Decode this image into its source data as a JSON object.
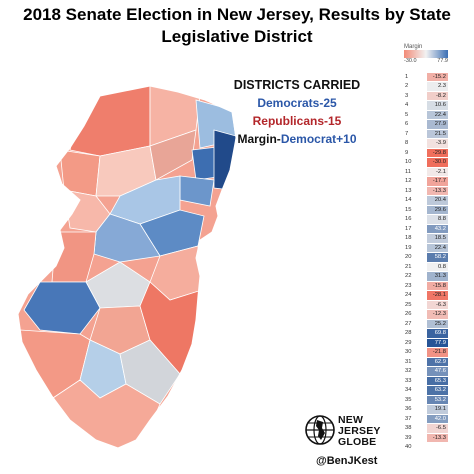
{
  "title": {
    "line1": "2018 Senate Election in New Jersey, Results by State",
    "line2": "Legislative District"
  },
  "summary": {
    "heading": "DISTRICTS CARRIED",
    "democrats": "Democrats-25",
    "republicans": "Republicans-15",
    "margin_label": "Margin-",
    "margin_value": "Democrat+10"
  },
  "legend": {
    "title": "Margin",
    "min_label": "-30.0",
    "max_label": "77.9",
    "colors": {
      "rep": "#f28b78",
      "neutral": "#f2f2f2",
      "dem": "#3c6fb4"
    }
  },
  "districts": [
    {
      "d": "1",
      "m": "-15.2"
    },
    {
      "d": "2",
      "m": "2.3"
    },
    {
      "d": "3",
      "m": "-8.2"
    },
    {
      "d": "4",
      "m": "10.6"
    },
    {
      "d": "5",
      "m": "22.4"
    },
    {
      "d": "6",
      "m": "27.9"
    },
    {
      "d": "7",
      "m": "21.5"
    },
    {
      "d": "8",
      "m": "-3.9"
    },
    {
      "d": "9",
      "m": "-29.8"
    },
    {
      "d": "10",
      "m": "-30.0"
    },
    {
      "d": "11",
      "m": "-2.1"
    },
    {
      "d": "12",
      "m": "-17.7"
    },
    {
      "d": "13",
      "m": "-13.3"
    },
    {
      "d": "14",
      "m": "20.4"
    },
    {
      "d": "15",
      "m": "29.6"
    },
    {
      "d": "16",
      "m": "8.8"
    },
    {
      "d": "17",
      "m": "43.2"
    },
    {
      "d": "18",
      "m": "18.5"
    },
    {
      "d": "19",
      "m": "22.4"
    },
    {
      "d": "20",
      "m": "58.2"
    },
    {
      "d": "21",
      "m": "0.8"
    },
    {
      "d": "22",
      "m": "31.3"
    },
    {
      "d": "23",
      "m": "-15.8"
    },
    {
      "d": "24",
      "m": "-28.1"
    },
    {
      "d": "25",
      "m": "-6.3"
    },
    {
      "d": "26",
      "m": "-12.3"
    },
    {
      "d": "27",
      "m": "25.2"
    },
    {
      "d": "28",
      "m": "69.8"
    },
    {
      "d": "29",
      "m": "77.9"
    },
    {
      "d": "30",
      "m": "-21.8"
    },
    {
      "d": "31",
      "m": "62.9"
    },
    {
      "d": "32",
      "m": "47.6"
    },
    {
      "d": "33",
      "m": "65.3"
    },
    {
      "d": "34",
      "m": "63.2"
    },
    {
      "d": "35",
      "m": "53.2"
    },
    {
      "d": "36",
      "m": "19.1"
    },
    {
      "d": "37",
      "m": "42.0"
    },
    {
      "d": "38",
      "m": "-6.5"
    },
    {
      "d": "39",
      "m": "-13.3"
    },
    {
      "d": "40",
      "m": ""
    }
  ],
  "logo": {
    "line1": "NEW",
    "line2": "JERSEY",
    "line3": "GLOBE",
    "icon": "globe-icon"
  },
  "handle": "@BenJKest"
}
